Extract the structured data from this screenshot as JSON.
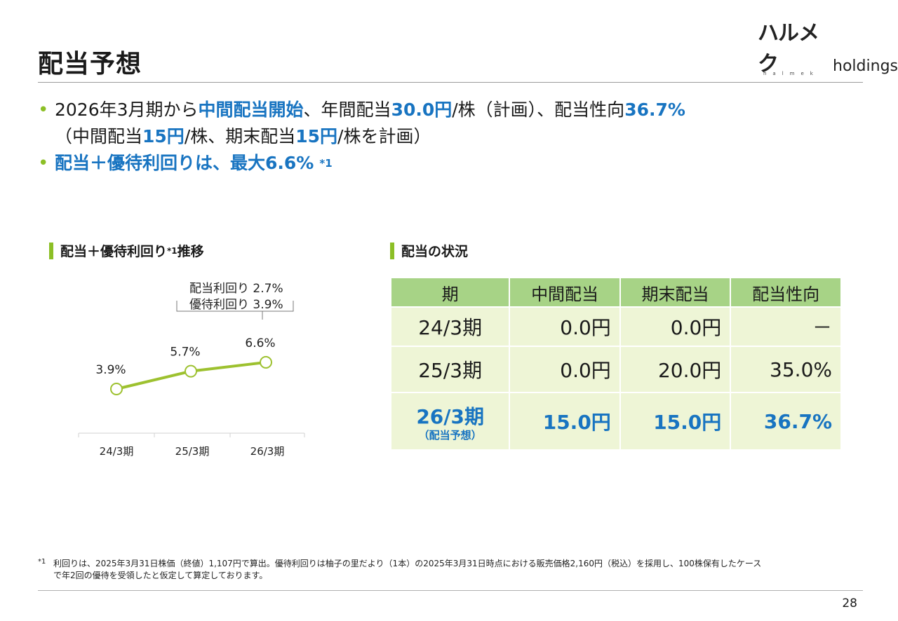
{
  "header": {
    "title": "配当予想",
    "logo_kana": "ハルメク",
    "logo_word": "holdings",
    "logo_sub": "halmek"
  },
  "bullets": {
    "b1_pre": "2026年3月期から",
    "b1_em1": "中間配当開始",
    "b1_mid1": "、年間配当",
    "b1_em2": "30.0円",
    "b1_mid2": "/株（計画）、配当性向",
    "b1_em3": "36.7%",
    "b1_l2_pre": "（中間配当",
    "b1_l2_em1": "15円",
    "b1_l2_mid": "/株、期末配当",
    "b1_l2_em2": "15円",
    "b1_l2_post": "/株を計画）",
    "b2": "配当＋優待利回りは、最大6.6%",
    "b2_sup": "*1"
  },
  "chart_section": {
    "title": "配当＋優待利回り",
    "title_sup": "*1",
    "title_post": "推移"
  },
  "chart_data": {
    "type": "line",
    "categories": [
      "24/3期",
      "25/3期",
      "26/3期"
    ],
    "values": [
      3.9,
      5.7,
      6.6
    ],
    "data_labels": [
      "3.9%",
      "5.7%",
      "6.6%"
    ],
    "annotation": [
      "配当利回り 2.7%",
      "優待利回り 3.9%"
    ],
    "line_color": "#9dc12f",
    "grid": false,
    "legend": "none"
  },
  "table_section": {
    "title": "配当の状況"
  },
  "table": {
    "headers": [
      "期",
      "中間配当",
      "期末配当",
      "配当性向"
    ],
    "rows": [
      {
        "period": "24/3期",
        "period_sub": "",
        "interim": "0.0円",
        "year_end": "0.0円",
        "payout": "－"
      },
      {
        "period": "25/3期",
        "period_sub": "",
        "interim": "0.0円",
        "year_end": "20.0円",
        "payout": "35.0%"
      },
      {
        "period": "26/3期",
        "period_sub": "（配当予想）",
        "interim": "15.0円",
        "year_end": "15.0円",
        "payout": "36.7%"
      }
    ]
  },
  "footnote": {
    "mark": "*1",
    "line1": "利回りは、2025年3月31日株価（終値）1,107円で算出。優待利回りは柚子の里だより（1本）の2025年3月31日時点における販売価格2,160円（税込）を採用し、100株保有したケース",
    "line2": "で年2回の優待を受領したと仮定して算定しております。"
  },
  "page_number": "28",
  "colors": {
    "accent_blue": "#1874c1",
    "accent_green": "#8cbf26",
    "table_header": "#a7d386",
    "table_cell": "#eef5d6"
  }
}
